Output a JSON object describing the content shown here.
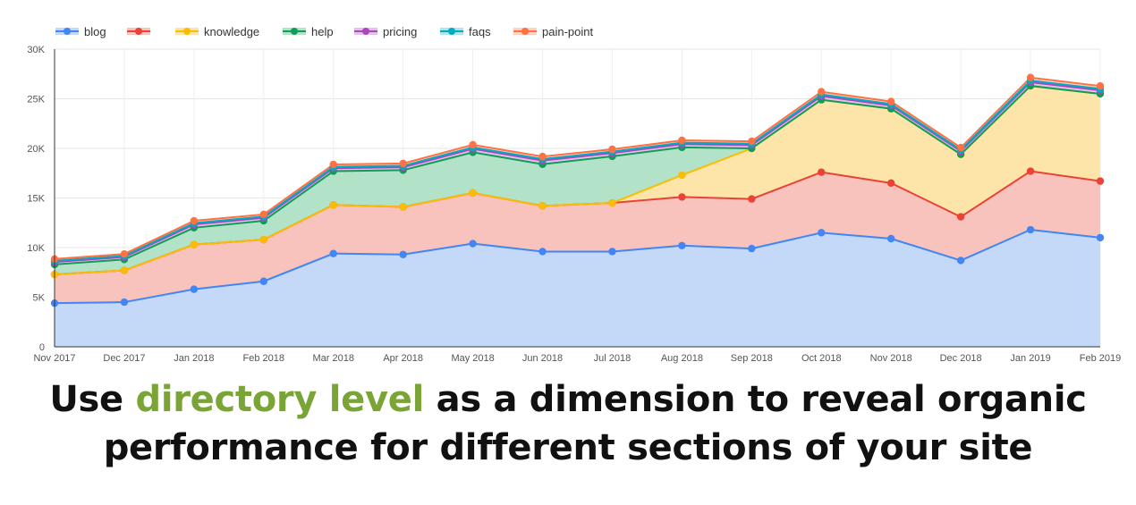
{
  "caption": {
    "before": "Use ",
    "highlight": "directory level",
    "after_line1": " as a dimension to reveal organic",
    "line2": "performance for different sections of your site",
    "highlight_color": "#7aa536"
  },
  "chart_data": {
    "type": "area",
    "stacked": true,
    "categories": [
      "Nov 2017",
      "Dec 2017",
      "Jan 2018",
      "Feb 2018",
      "Mar 2018",
      "Apr 2018",
      "May 2018",
      "Jun 2018",
      "Jul 2018",
      "Aug 2018",
      "Sep 2018",
      "Oct 2018",
      "Nov 2018",
      "Dec 2018",
      "Jan 2019",
      "Feb 2019"
    ],
    "ylim": [
      0,
      30000
    ],
    "yticks": [
      0,
      5000,
      10000,
      15000,
      20000,
      25000,
      30000
    ],
    "ytick_labels": [
      "0",
      "5K",
      "10K",
      "15K",
      "20K",
      "25K",
      "30K"
    ],
    "grid": true,
    "legend_position": "top-left",
    "series": [
      {
        "name": "blog",
        "color": "#4285f4",
        "fill": "#c4d8f8",
        "values": [
          4400,
          4500,
          5800,
          6600,
          9400,
          9300,
          10400,
          9600,
          9600,
          10200,
          9900,
          11500,
          10900,
          8700,
          11800,
          11000
        ]
      },
      {
        "name": "",
        "color": "#ea4335",
        "fill": "#f8c3bd",
        "values": [
          2900,
          3200,
          4500,
          4200,
          4900,
          4800,
          5100,
          4600,
          4900,
          4900,
          5000,
          6100,
          5600,
          4400,
          5900,
          5700
        ]
      },
      {
        "name": "knowledge",
        "color": "#fbbc04",
        "fill": "#fde5a9",
        "values": [
          0,
          0,
          0,
          0,
          0,
          0,
          0,
          0,
          0,
          2200,
          5100,
          7300,
          7500,
          6300,
          8600,
          8800
        ]
      },
      {
        "name": "help",
        "color": "#0f9d58",
        "fill": "#b2e3c8",
        "values": [
          1000,
          1100,
          1700,
          1900,
          3400,
          3700,
          4100,
          4200,
          4700,
          2800,
          0,
          0,
          0,
          0,
          0,
          0
        ]
      },
      {
        "name": "pricing",
        "color": "#ab47bc",
        "fill": "#e3c2ea",
        "values": [
          250,
          250,
          330,
          300,
          300,
          300,
          350,
          370,
          330,
          330,
          330,
          370,
          320,
          320,
          370,
          350
        ]
      },
      {
        "name": "faqs",
        "color": "#00acc1",
        "fill": "#b0e3ea",
        "values": [
          120,
          120,
          140,
          130,
          140,
          140,
          150,
          150,
          140,
          140,
          140,
          160,
          140,
          130,
          160,
          150
        ]
      },
      {
        "name": "pain-point",
        "color": "#ff7043",
        "fill": "#ffd1c2",
        "values": [
          180,
          180,
          230,
          220,
          240,
          240,
          260,
          260,
          240,
          240,
          240,
          280,
          260,
          230,
          310,
          290
        ]
      }
    ]
  }
}
